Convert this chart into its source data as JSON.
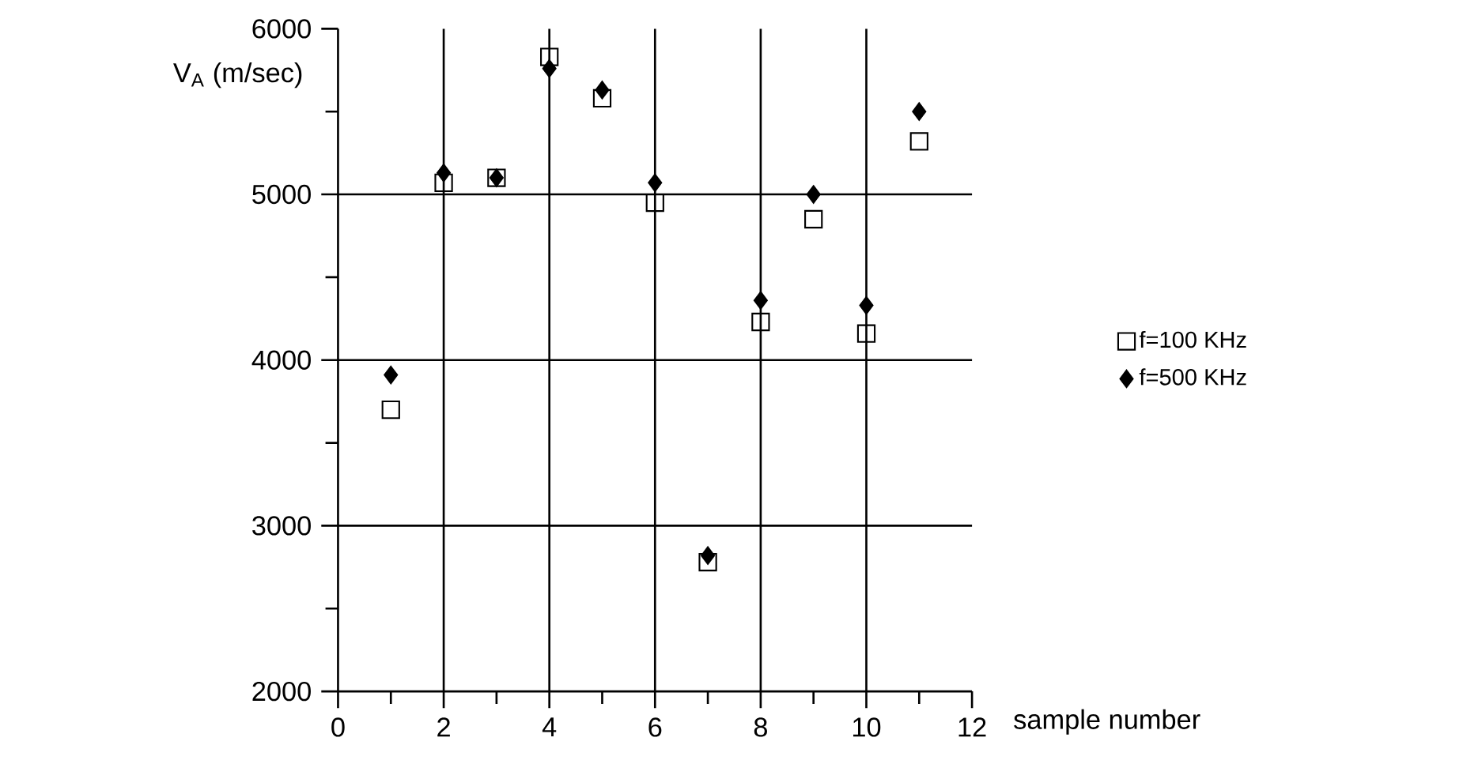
{
  "chart_data": {
    "type": "scatter",
    "xlabel": "sample number",
    "ylabel": "V$_{A}$ (m/sec)",
    "x": [
      1,
      2,
      3,
      4,
      5,
      6,
      7,
      8,
      9,
      10,
      11
    ],
    "series": [
      {
        "name": "f=100 KHz",
        "color": "#000000",
        "marker": "square",
        "values": [
          3700,
          5070,
          5100,
          5830,
          5580,
          4950,
          2780,
          4230,
          4850,
          4160,
          5320
        ]
      },
      {
        "name": "f=500 KHz",
        "color": "#000000",
        "marker": "diamond",
        "values": [
          3910,
          5130,
          5100,
          5760,
          5630,
          5070,
          2820,
          4360,
          5000,
          4330,
          5500
        ]
      }
    ],
    "xlim": [
      0,
      12
    ],
    "ylim": [
      2000,
      6000
    ],
    "xticks": [
      0,
      {
        "value": 1,
        "label": null
      },
      2,
      {
        "value": 3,
        "label": null
      },
      4,
      {
        "value": 5,
        "label": null
      },
      6,
      {
        "value": 7,
        "label": null
      },
      8,
      {
        "value": 9,
        "label": null
      },
      10,
      {
        "value": 11,
        "label": null
      },
      12
    ],
    "yticks": [
      2000,
      {
        "value": 2500,
        "label": null
      },
      3000,
      {
        "value": 3500,
        "label": null
      },
      4000,
      {
        "value": 4500,
        "label": null
      },
      5000,
      {
        "value": 5500,
        "label": null
      },
      6000
    ],
    "grid": true,
    "legend": "right"
  }
}
